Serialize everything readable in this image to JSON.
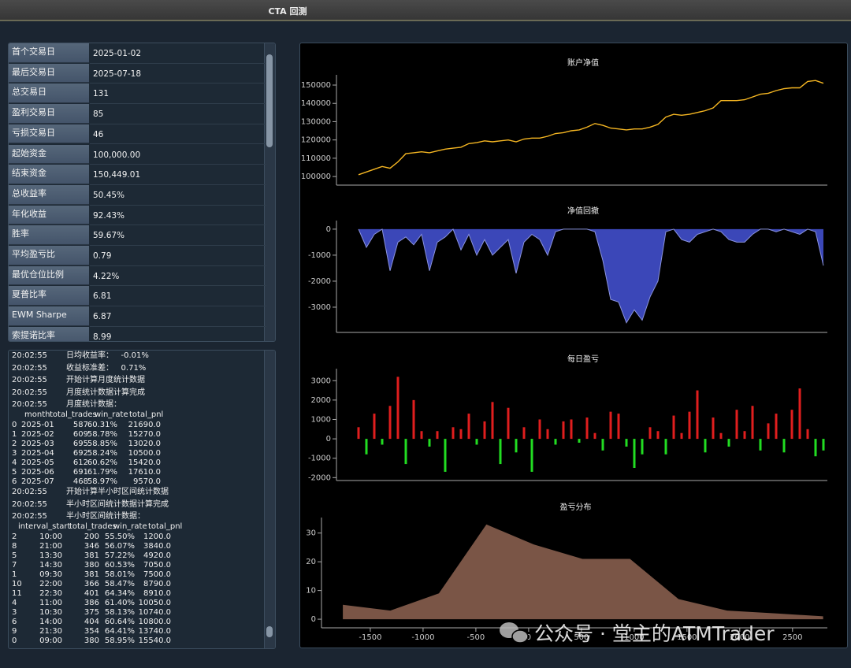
{
  "window_title": "CTA 回测",
  "stats": [
    [
      "首个交易日",
      "2025-01-02"
    ],
    [
      "最后交易日",
      "2025-07-18"
    ],
    [
      "总交易日",
      "131"
    ],
    [
      "盈利交易日",
      "85"
    ],
    [
      "亏损交易日",
      "46"
    ],
    [
      "起始资金",
      "100,000.00"
    ],
    [
      "结束资金",
      "150,449.01"
    ],
    [
      "总收益率",
      "50.45%"
    ],
    [
      "年化收益",
      "92.43%"
    ],
    [
      "胜率",
      "59.67%"
    ],
    [
      "平均盈亏比",
      "0.79"
    ],
    [
      "最优仓位比例",
      "4.22%"
    ],
    [
      "夏普比率",
      "6.81"
    ],
    [
      "EWM Sharpe",
      "6.87"
    ],
    [
      "索提诺比率",
      "8.99"
    ]
  ],
  "log": [
    {
      "time": "20:02:55",
      "text": "日均收益率：   -0.01%"
    },
    {
      "time": "20:02:55",
      "text": "收益标准差：   0.71%"
    },
    {
      "time": "20:02:55",
      "text": "开始计算月度统计数据"
    },
    {
      "time": "20:02:55",
      "text": "月度统计数据计算完成"
    },
    {
      "time": "20:02:55",
      "text": "月度统计数据："
    },
    {
      "columns": [
        "month",
        "total_trades",
        "win_rate",
        "total_pnl"
      ],
      "rows": [
        [
          "0",
          "2025-01",
          "587",
          "60.31%",
          "21690.0"
        ],
        [
          "1",
          "2025-02",
          "609",
          "58.78%",
          "15270.0"
        ],
        [
          "2",
          "2025-03",
          "695",
          "58.85%",
          "13020.0"
        ],
        [
          "3",
          "2025-04",
          "692",
          "58.24%",
          "10500.0"
        ],
        [
          "4",
          "2025-05",
          "612",
          "60.62%",
          "15420.0"
        ],
        [
          "5",
          "2025-06",
          "691",
          "61.79%",
          "17610.0"
        ],
        [
          "6",
          "2025-07",
          "468",
          "58.97%",
          "9570.0"
        ]
      ]
    },
    {
      "time": "20:02:55",
      "text": "开始计算半小时区间统计数据"
    },
    {
      "time": "20:02:55",
      "text": "半小时区间统计数据计算完成"
    },
    {
      "time": "20:02:55",
      "text": "半小时区间统计数据："
    },
    {
      "columns": [
        "interval_start",
        "total_trades",
        "win_rate",
        "total_pnl"
      ],
      "rows": [
        [
          "2",
          "10:00",
          "200",
          "55.50%",
          "1200.0"
        ],
        [
          "8",
          "21:00",
          "346",
          "56.07%",
          "3840.0"
        ],
        [
          "5",
          "13:30",
          "381",
          "57.22%",
          "4920.0"
        ],
        [
          "7",
          "14:30",
          "380",
          "60.53%",
          "7050.0"
        ],
        [
          "1",
          "09:30",
          "381",
          "58.01%",
          "7500.0"
        ],
        [
          "10",
          "22:00",
          "366",
          "58.47%",
          "8790.0"
        ],
        [
          "11",
          "22:30",
          "401",
          "64.34%",
          "8910.0"
        ],
        [
          "4",
          "11:00",
          "386",
          "61.40%",
          "10050.0"
        ],
        [
          "3",
          "10:30",
          "375",
          "58.13%",
          "10740.0"
        ],
        [
          "6",
          "14:00",
          "404",
          "60.64%",
          "10800.0"
        ],
        [
          "9",
          "21:30",
          "354",
          "64.41%",
          "13740.0"
        ],
        [
          "0",
          "09:00",
          "380",
          "58.95%",
          "15540.0"
        ]
      ]
    }
  ],
  "chart_data": [
    {
      "type": "line",
      "title": "账户净值",
      "color": "#f5b622",
      "ylim": [
        95300,
        155600
      ],
      "yticks": [
        100000,
        110000,
        120000,
        130000,
        140000,
        150000
      ],
      "values": [
        101000,
        102500,
        104000,
        105500,
        104500,
        108000,
        112500,
        113000,
        113500,
        113000,
        114000,
        115000,
        115500,
        116000,
        118000,
        118500,
        119500,
        119000,
        119500,
        120000,
        119000,
        120500,
        121000,
        121000,
        122000,
        123500,
        124000,
        125000,
        125500,
        127000,
        129000,
        128000,
        126500,
        126000,
        125500,
        126000,
        126000,
        127000,
        128500,
        132500,
        134000,
        133500,
        134000,
        135000,
        136000,
        137500,
        141500,
        141500,
        141500,
        142000,
        143500,
        145000,
        145500,
        147000,
        148000,
        148500,
        148500,
        152000,
        152500,
        151000
      ]
    },
    {
      "type": "area",
      "title": "净值回撤",
      "color": "#3b47b8",
      "line_color": "#8a93dc",
      "ylim": [
        -3970,
        330
      ],
      "yticks": [
        -3000,
        -2000,
        -1000,
        0
      ],
      "values": [
        0,
        -700,
        -200,
        0,
        -1600,
        -500,
        -300,
        -600,
        -200,
        -1600,
        -500,
        -300,
        0,
        -800,
        -200,
        -1000,
        -400,
        -1000,
        -700,
        -400,
        -1700,
        -500,
        -200,
        -400,
        -1000,
        -100,
        0,
        0,
        0,
        0,
        -100,
        -1200,
        -2700,
        -2800,
        -3600,
        -3100,
        -3500,
        -2600,
        -2000,
        -100,
        0,
        -400,
        -500,
        -200,
        -100,
        0,
        -100,
        -400,
        -500,
        -500,
        -200,
        0,
        0,
        -100,
        0,
        -100,
        -200,
        0,
        -100,
        -1400
      ]
    },
    {
      "type": "bar",
      "title": "每日盈亏",
      "positive_color": "#e01e1e",
      "negative_color": "#22dd22",
      "ylim": [
        -2150,
        3620
      ],
      "yticks": [
        -2000,
        -1000,
        0,
        1000,
        2000,
        3000
      ],
      "values": [
        600,
        -800,
        1300,
        -300,
        1700,
        3200,
        -1300,
        2000,
        400,
        -400,
        400,
        -1700,
        600,
        500,
        1300,
        -300,
        900,
        1900,
        -1300,
        1600,
        -700,
        600,
        -1700,
        1000,
        500,
        -300,
        900,
        1000,
        -200,
        1100,
        300,
        -600,
        1400,
        1300,
        -400,
        -1500,
        -800,
        600,
        400,
        -800,
        1200,
        300,
        1400,
        2500,
        -700,
        1100,
        300,
        -400,
        1500,
        400,
        1700,
        -600,
        800,
        1300,
        -700,
        1500,
        2600,
        500,
        -900,
        -600
      ]
    },
    {
      "type": "area",
      "title": "盈亏分布",
      "color": "#7a5546",
      "xlim": [
        -1940,
        2830
      ],
      "xticks": [
        -1500,
        -1000,
        -500,
        0,
        500,
        1000,
        1500,
        2000,
        2500
      ],
      "ylim": [
        -3,
        35.4
      ],
      "yticks": [
        0,
        10,
        20,
        30
      ],
      "x": [
        -1760,
        -1310,
        -850,
        -400,
        50,
        510,
        960,
        1420,
        1880,
        2350,
        2790
      ],
      "values": [
        5,
        3,
        9,
        33,
        26,
        21,
        21,
        7,
        3,
        2,
        1
      ]
    }
  ],
  "watermark": "公众号 · 堂主的ATMTrader"
}
